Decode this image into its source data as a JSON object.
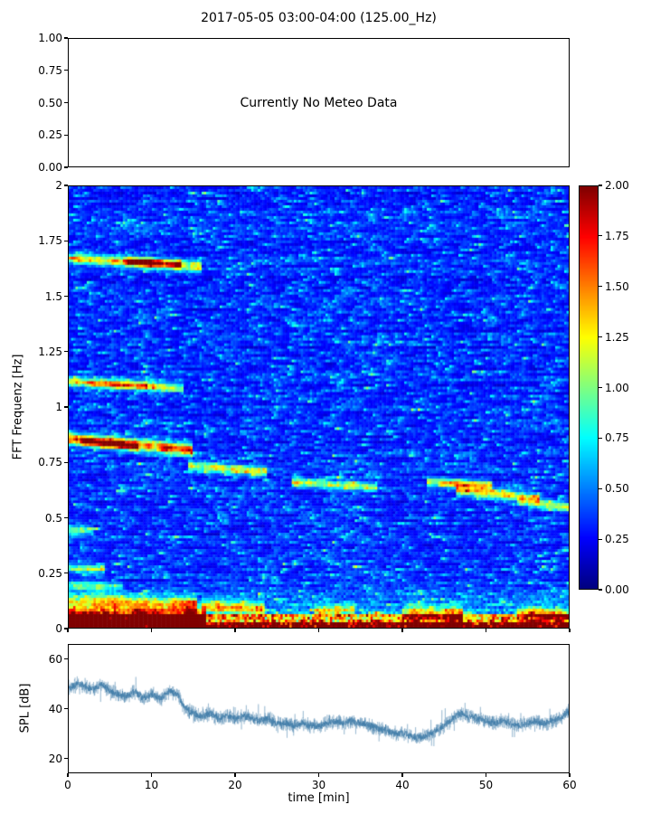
{
  "figure": {
    "title": "2017-05-05 03:00-04:00 (125.00_Hz)"
  },
  "chart_data": [
    {
      "type": "table",
      "panel": "meteo",
      "text": "Currently No Meteo Data",
      "ylim": [
        0.0,
        1.0
      ],
      "yticks": [
        0,
        0.25,
        0.5,
        0.75,
        1
      ],
      "ytick_labels": [
        "0.00",
        "0.25",
        "0.50",
        "0.75",
        "1.00"
      ]
    },
    {
      "type": "heatmap",
      "panel": "spectrogram",
      "ylabel": "FFT Frequenz [Hz]",
      "xlim": [
        0,
        60
      ],
      "ylim": [
        0,
        2
      ],
      "yticks": [
        0,
        0.25,
        0.5,
        0.75,
        1,
        1.25,
        1.5,
        1.75,
        2
      ],
      "ytick_labels": [
        "0",
        "0.25",
        "0.5",
        "0.75",
        "1",
        "1.25",
        "1.5",
        "1.75",
        "2"
      ],
      "xticks": [
        0,
        10,
        20,
        30,
        40,
        50,
        60
      ],
      "colormap": "jet",
      "value_range": [
        0,
        2
      ],
      "colorbar": {
        "ticks": [
          0,
          0.25,
          0.5,
          0.75,
          1,
          1.25,
          1.5,
          1.75,
          2
        ],
        "tick_labels": [
          "0.00",
          "0.25",
          "0.50",
          "0.75",
          "1.00",
          "1.25",
          "1.50",
          "1.75",
          "2.00"
        ]
      },
      "background": {
        "row_base_min": 0.1,
        "row_base_var": 0.1,
        "exp_scale": 0.2,
        "speckle_prob": 0.015,
        "lowfreq_edge": 0.22,
        "lowfreq_g0": 0.15,
        "lowfreq_g1": 0.5
      },
      "features": [
        {
          "label": "tone-1.65Hz",
          "x0": 0,
          "x1": 15.5,
          "y": 1.675,
          "y_end": 1.635,
          "width": 0.016,
          "intensity": 1.0
        },
        {
          "label": "tone-1.65Hz-hotspot",
          "x0": 6.5,
          "x1": 13,
          "y": 1.66,
          "y_end": 1.645,
          "width": 0.012,
          "intensity": 0.85
        },
        {
          "label": "tone-1.10Hz",
          "x0": 0,
          "x1": 13.5,
          "y": 1.115,
          "y_end": 1.085,
          "width": 0.014,
          "intensity": 0.85
        },
        {
          "label": "tone-1.10Hz-hotspot",
          "x0": 2,
          "x1": 9,
          "y": 1.105,
          "y_end": 1.095,
          "width": 0.011,
          "intensity": 0.5
        },
        {
          "label": "tone-0.83Hz",
          "x0": 0,
          "x1": 14.5,
          "y": 0.855,
          "y_end": 0.805,
          "width": 0.018,
          "intensity": 1.25
        },
        {
          "label": "tone-0.83Hz-hotspot",
          "x0": 1.5,
          "x1": 8,
          "y": 0.845,
          "y_end": 0.82,
          "width": 0.013,
          "intensity": 0.7
        },
        {
          "label": "tone-0.72Hz",
          "x0": 14.5,
          "x1": 23.5,
          "y": 0.735,
          "y_end": 0.705,
          "width": 0.015,
          "intensity": 0.85
        },
        {
          "label": "tone-0.64Hz-a",
          "x0": 27,
          "x1": 36.5,
          "y": 0.66,
          "y_end": 0.635,
          "width": 0.013,
          "intensity": 0.8
        },
        {
          "label": "tone-0.64Hz-b",
          "x0": 43,
          "x1": 50.5,
          "y": 0.66,
          "y_end": 0.645,
          "width": 0.013,
          "intensity": 0.95
        },
        {
          "label": "tone-0.60Hz",
          "x0": 46.5,
          "x1": 56,
          "y": 0.625,
          "y_end": 0.585,
          "width": 0.015,
          "intensity": 1.0
        },
        {
          "label": "tone-0.56Hz",
          "x0": 54,
          "x1": 60,
          "y": 0.575,
          "y_end": 0.545,
          "width": 0.013,
          "intensity": 0.75
        },
        {
          "label": "low-band-strong",
          "x0": 0,
          "x1": 16,
          "y": 0.05,
          "y_end": 0.045,
          "width": 0.03,
          "intensity": 1.5
        },
        {
          "label": "low-band-0.12Hz",
          "x0": 0,
          "x1": 15,
          "y": 0.125,
          "y_end": 0.105,
          "width": 0.022,
          "intensity": 0.7
        },
        {
          "label": "blob-0.27Hz",
          "x0": 0,
          "x1": 4,
          "y": 0.27,
          "y_end": 0.265,
          "width": 0.014,
          "intensity": 0.6
        },
        {
          "label": "low-patch-17-23",
          "x0": 16,
          "x1": 23,
          "y": 0.095,
          "y_end": 0.085,
          "width": 0.02,
          "intensity": 0.8
        },
        {
          "label": "low-patch-30-34",
          "x0": 29.5,
          "x1": 34,
          "y": 0.08,
          "y_end": 0.08,
          "width": 0.018,
          "intensity": 0.7
        },
        {
          "label": "low-patch-40-47",
          "x0": 40,
          "x1": 47,
          "y": 0.06,
          "y_end": 0.06,
          "width": 0.022,
          "intensity": 0.9
        },
        {
          "label": "low-patch-54-60",
          "x0": 54,
          "x1": 60,
          "y": 0.065,
          "y_end": 0.06,
          "width": 0.02,
          "intensity": 0.8
        },
        {
          "label": "edge-0.44Hz",
          "x0": 0,
          "x1": 2.5,
          "y": 0.44,
          "y_end": 0.44,
          "width": 0.015,
          "intensity": 0.6
        },
        {
          "label": "edge-0.19Hz",
          "x0": 0,
          "x1": 6,
          "y": 0.19,
          "y_end": 0.185,
          "width": 0.015,
          "intensity": 0.5
        }
      ]
    },
    {
      "type": "line",
      "panel": "spl",
      "xlabel": "time [min]",
      "ylabel": "SPL [dB]",
      "xlim": [
        0,
        60
      ],
      "ylim": [
        14,
        66
      ],
      "xticks": [
        0,
        10,
        20,
        30,
        40,
        50,
        60
      ],
      "xtick_labels": [
        "0",
        "10",
        "20",
        "30",
        "40",
        "50",
        "60"
      ],
      "yticks": [
        20,
        40,
        60
      ],
      "ytick_labels": [
        "20",
        "40",
        "60"
      ],
      "color": "#3f7ba8",
      "noise_db": 3.6,
      "spike_prob": 0.05,
      "x": [
        0,
        1,
        2,
        3,
        4,
        5,
        6,
        7,
        8,
        9,
        10,
        11,
        12,
        13,
        14,
        15,
        16,
        17,
        18,
        19,
        20,
        21,
        22,
        23,
        24,
        25,
        26,
        27,
        28,
        29,
        30,
        31,
        32,
        33,
        34,
        35,
        36,
        37,
        38,
        39,
        40,
        41,
        42,
        43,
        44,
        45,
        46,
        47,
        48,
        49,
        50,
        51,
        52,
        53,
        54,
        55,
        56,
        57,
        58,
        59,
        60
      ],
      "y": [
        48,
        50,
        49,
        48,
        50,
        47,
        46,
        45,
        47,
        44,
        46,
        44,
        47,
        46,
        40,
        38,
        37,
        38,
        36,
        37,
        36,
        37,
        36,
        35,
        36,
        34,
        34,
        33,
        34,
        33,
        33,
        34,
        35,
        34,
        35,
        34,
        33,
        32,
        31,
        30,
        30,
        29,
        28,
        29,
        31,
        33,
        36,
        38,
        37,
        36,
        35,
        34,
        35,
        34,
        33,
        34,
        35,
        34,
        35,
        36,
        39
      ]
    }
  ]
}
